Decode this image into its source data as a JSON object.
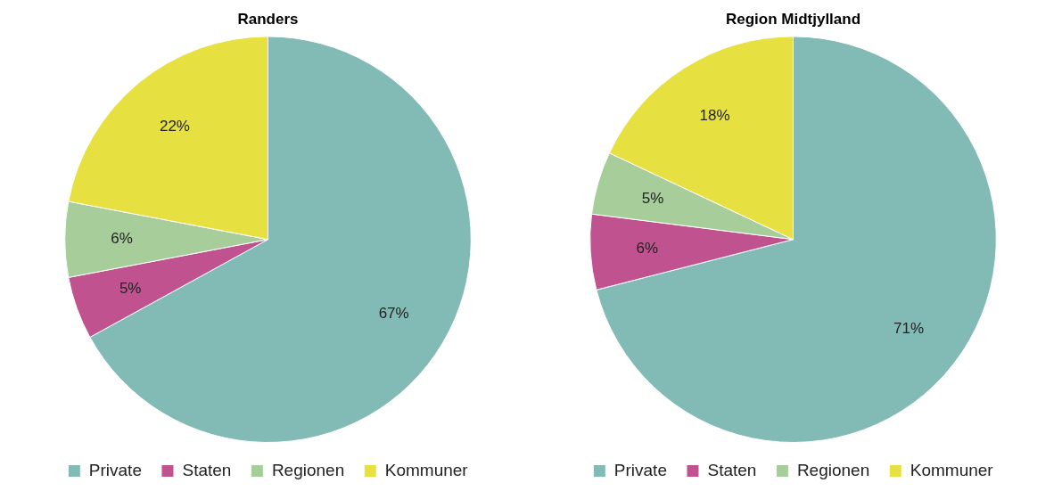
{
  "chart_data": [
    {
      "type": "pie",
      "title": "Randers",
      "categories": [
        "Private",
        "Staten",
        "Regionen",
        "Kommuner"
      ],
      "values": [
        67,
        5,
        6,
        22
      ],
      "colors": [
        "#82bbb5",
        "#c0528f",
        "#a6cd9a",
        "#e6e041"
      ],
      "value_labels": [
        "67%",
        "5%",
        "6%",
        "22%"
      ],
      "legend": "bottom"
    },
    {
      "type": "pie",
      "title": "Region Midtjylland",
      "categories": [
        "Private",
        "Staten",
        "Regionen",
        "Kommuner"
      ],
      "values": [
        71,
        6,
        5,
        18
      ],
      "colors": [
        "#82bbb5",
        "#c0528f",
        "#a6cd9a",
        "#e6e041"
      ],
      "value_labels": [
        "71%",
        "6%",
        "5%",
        "18%"
      ],
      "legend": "bottom"
    }
  ]
}
